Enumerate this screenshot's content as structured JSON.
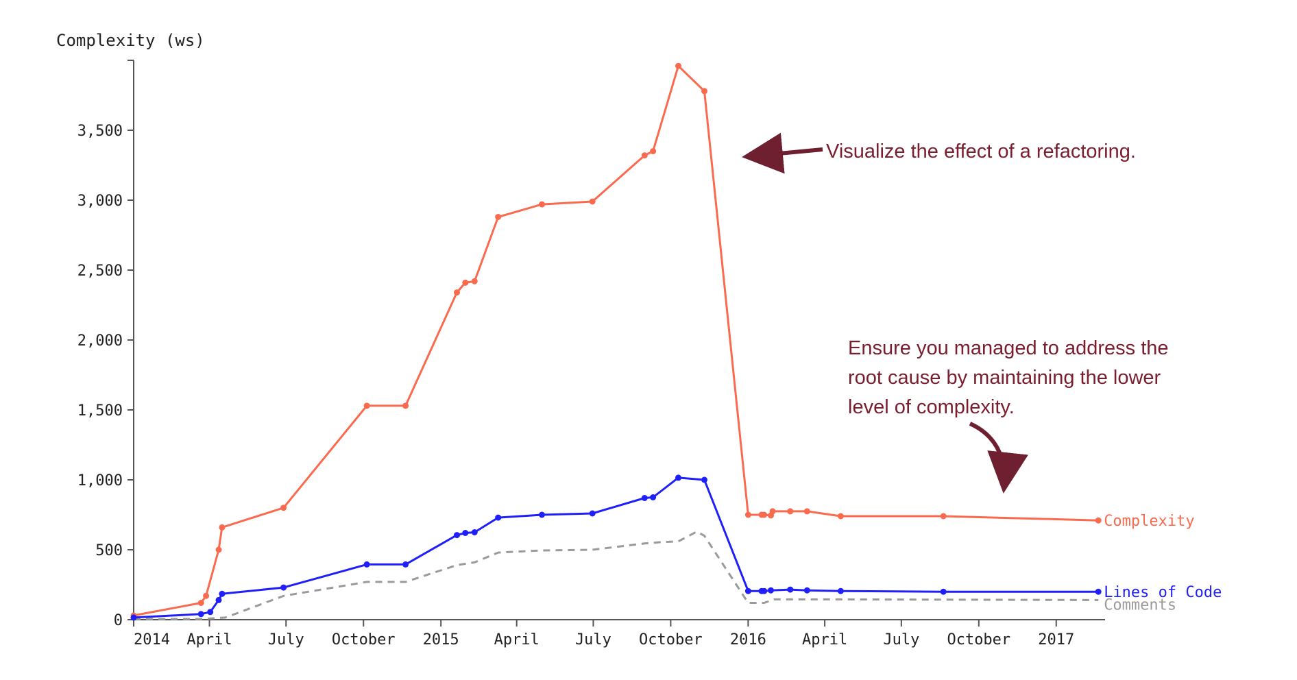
{
  "chart_data": {
    "type": "line",
    "title": "",
    "ylabel": "Complexity (ws)",
    "xlabel": "",
    "ylim": [
      0,
      4000
    ],
    "xlim": [
      "2014-01-01",
      "2017-02-28"
    ],
    "y_ticks": [
      0,
      500,
      1000,
      1500,
      2000,
      2500,
      3000,
      3500
    ],
    "y_tick_labels": [
      "0",
      "500",
      "1,000",
      "1,500",
      "2,000",
      "2,500",
      "3,000",
      "3,500"
    ],
    "x_ticks": [
      {
        "date": "2014-01-01",
        "label": "2014"
      },
      {
        "date": "2014-04-01",
        "label": "April"
      },
      {
        "date": "2014-07-01",
        "label": "July"
      },
      {
        "date": "2014-10-01",
        "label": "October"
      },
      {
        "date": "2015-01-01",
        "label": "2015"
      },
      {
        "date": "2015-04-01",
        "label": "April"
      },
      {
        "date": "2015-07-01",
        "label": "July"
      },
      {
        "date": "2015-10-01",
        "label": "October"
      },
      {
        "date": "2016-01-01",
        "label": "2016"
      },
      {
        "date": "2016-04-01",
        "label": "April"
      },
      {
        "date": "2016-07-01",
        "label": "July"
      },
      {
        "date": "2016-10-01",
        "label": "October"
      },
      {
        "date": "2017-01-01",
        "label": "2017"
      }
    ],
    "grid": false,
    "series": [
      {
        "name": "Complexity",
        "color": "#fa6a4e",
        "style": "solid",
        "markers": true,
        "points": [
          [
            "2014-01-01",
            30
          ],
          [
            "2014-03-22",
            120
          ],
          [
            "2014-03-28",
            170
          ],
          [
            "2014-04-12",
            500
          ],
          [
            "2014-04-16",
            660
          ],
          [
            "2014-06-28",
            800
          ],
          [
            "2014-10-05",
            1530
          ],
          [
            "2014-11-20",
            1530
          ],
          [
            "2015-01-20",
            2340
          ],
          [
            "2015-01-30",
            2410
          ],
          [
            "2015-02-10",
            2420
          ],
          [
            "2015-03-10",
            2880
          ],
          [
            "2015-05-01",
            2970
          ],
          [
            "2015-06-30",
            2990
          ],
          [
            "2015-08-31",
            3320
          ],
          [
            "2015-09-10",
            3350
          ],
          [
            "2015-10-10",
            3960
          ],
          [
            "2015-11-10",
            3780
          ],
          [
            "2016-01-01",
            750
          ],
          [
            "2016-01-17",
            750
          ],
          [
            "2016-01-20",
            750
          ],
          [
            "2016-01-28",
            745
          ],
          [
            "2016-01-30",
            775
          ],
          [
            "2016-02-20",
            775
          ],
          [
            "2016-03-11",
            775
          ],
          [
            "2016-04-20",
            740
          ],
          [
            "2016-08-20",
            740
          ],
          [
            "2017-02-20",
            710
          ]
        ]
      },
      {
        "name": "Lines of Code",
        "color": "#1f1ffa",
        "style": "solid",
        "markers": true,
        "points": [
          [
            "2014-01-01",
            15
          ],
          [
            "2014-03-22",
            40
          ],
          [
            "2014-04-02",
            55
          ],
          [
            "2014-04-12",
            140
          ],
          [
            "2014-04-16",
            185
          ],
          [
            "2014-06-28",
            230
          ],
          [
            "2014-10-05",
            395
          ],
          [
            "2014-11-20",
            395
          ],
          [
            "2015-01-20",
            605
          ],
          [
            "2015-01-30",
            620
          ],
          [
            "2015-02-10",
            625
          ],
          [
            "2015-03-10",
            730
          ],
          [
            "2015-05-01",
            750
          ],
          [
            "2015-06-30",
            760
          ],
          [
            "2015-08-31",
            870
          ],
          [
            "2015-09-10",
            875
          ],
          [
            "2015-10-10",
            1015
          ],
          [
            "2015-11-10",
            1000
          ],
          [
            "2016-01-01",
            205
          ],
          [
            "2016-01-17",
            205
          ],
          [
            "2016-01-20",
            205
          ],
          [
            "2016-01-28",
            210
          ],
          [
            "2016-02-20",
            215
          ],
          [
            "2016-03-11",
            210
          ],
          [
            "2016-04-20",
            205
          ],
          [
            "2016-08-20",
            200
          ],
          [
            "2017-02-20",
            200
          ]
        ]
      },
      {
        "name": "Comments",
        "color": "#9a9a9a",
        "style": "dashed",
        "markers": false,
        "points": [
          [
            "2014-01-01",
            5
          ],
          [
            "2014-03-22",
            5
          ],
          [
            "2014-04-20",
            15
          ],
          [
            "2014-06-28",
            170
          ],
          [
            "2014-10-05",
            270
          ],
          [
            "2014-11-20",
            270
          ],
          [
            "2015-01-20",
            390
          ],
          [
            "2015-02-10",
            410
          ],
          [
            "2015-03-10",
            480
          ],
          [
            "2015-05-01",
            495
          ],
          [
            "2015-06-30",
            500
          ],
          [
            "2015-08-31",
            545
          ],
          [
            "2015-09-20",
            555
          ],
          [
            "2015-10-10",
            560
          ],
          [
            "2015-11-01",
            630
          ],
          [
            "2015-11-10",
            600
          ],
          [
            "2016-01-01",
            120
          ],
          [
            "2016-01-20",
            120
          ],
          [
            "2016-02-01",
            145
          ],
          [
            "2016-04-20",
            145
          ],
          [
            "2017-02-20",
            140
          ]
        ]
      }
    ],
    "annotations": [
      {
        "name": "refactoring-annotation",
        "lines": [
          "Visualize the effect of a refactoring."
        ],
        "color": "#7a1e2e"
      },
      {
        "name": "root-cause-annotation",
        "lines": [
          "Ensure you managed to address the",
          "root cause by maintaining the lower",
          "level of complexity."
        ],
        "color": "#7a1e2e"
      }
    ]
  }
}
